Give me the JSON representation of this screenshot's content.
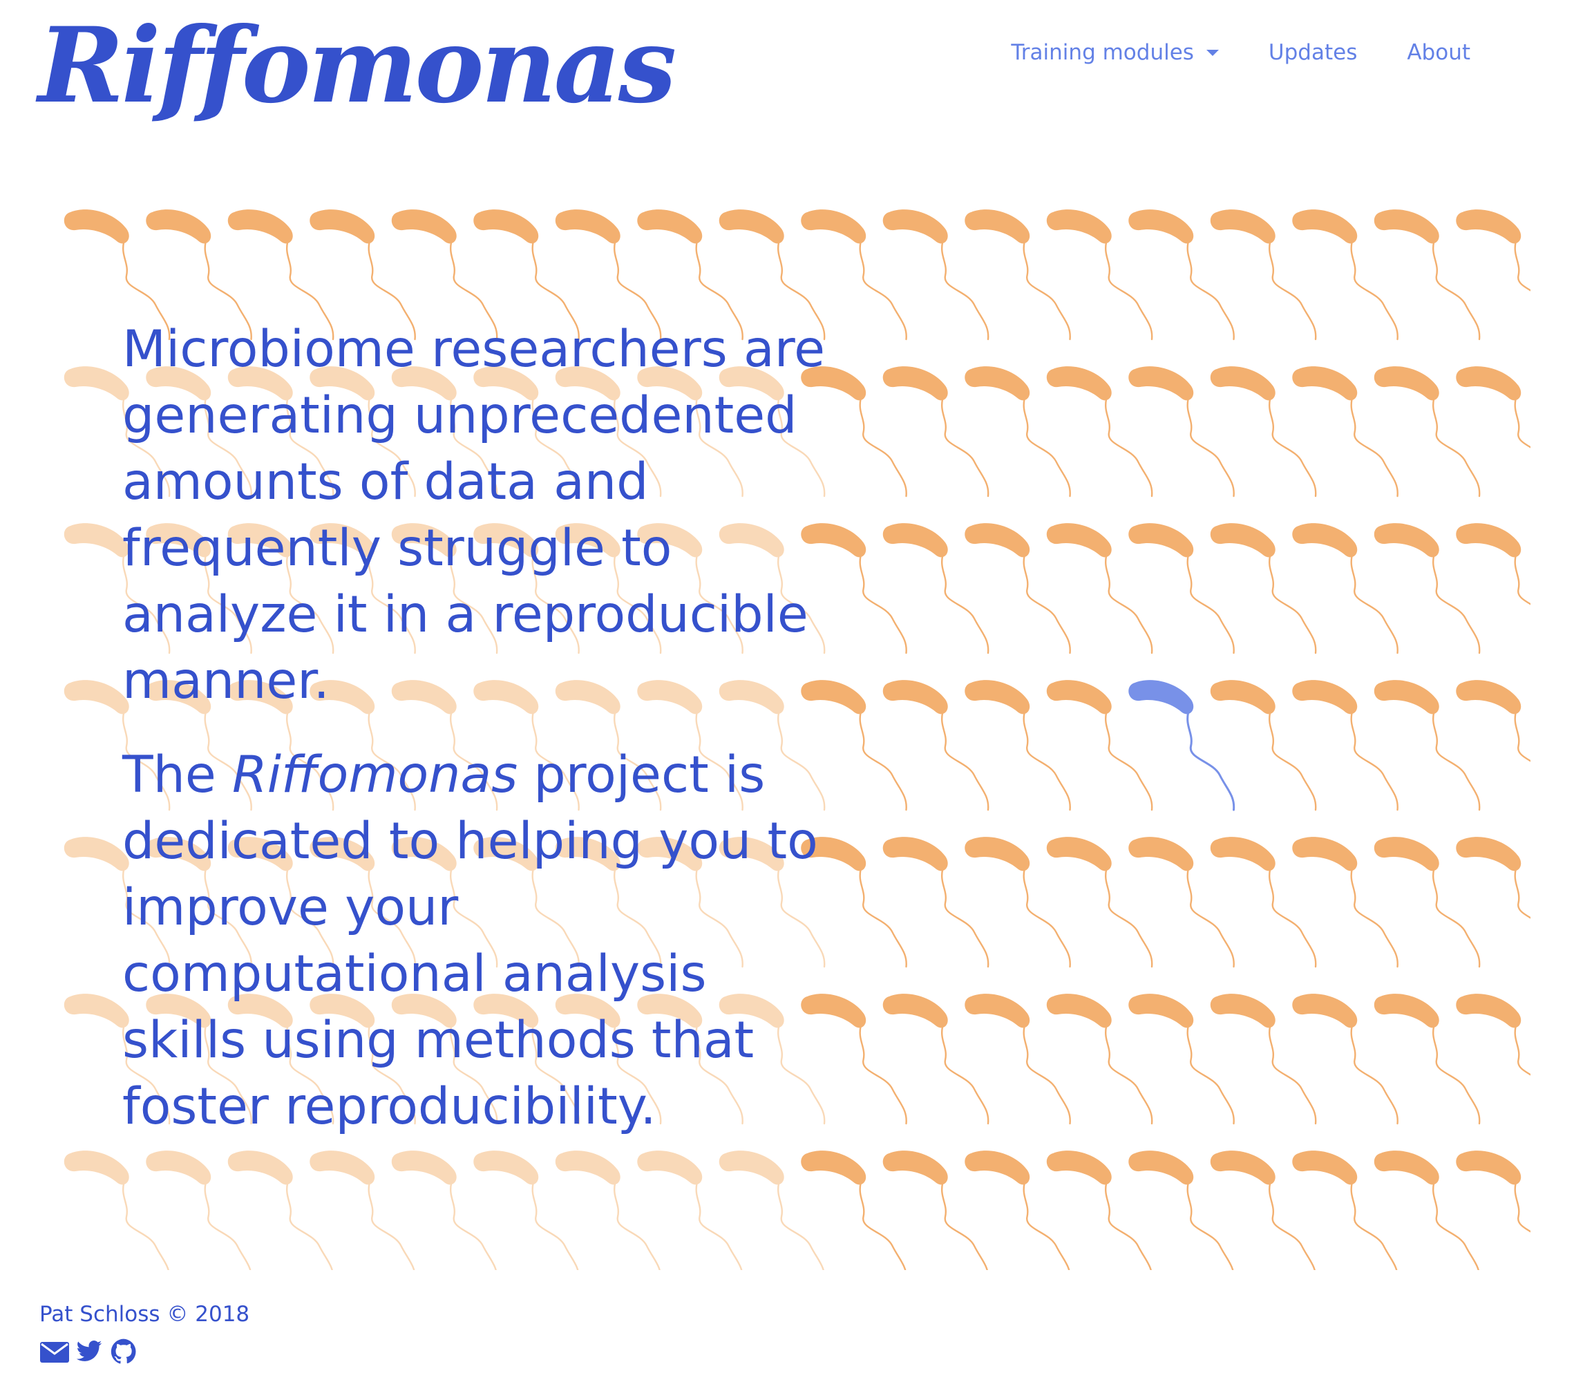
{
  "site": {
    "logo": "Riffomonas"
  },
  "nav": {
    "items": [
      {
        "label": "Training modules",
        "dropdown": true
      },
      {
        "label": "Updates"
      },
      {
        "label": "About"
      }
    ]
  },
  "hero": {
    "paragraph1": "Microbiome researchers are generating unprecedented amounts of data and frequently struggle to analyze it in a reproducible manner.",
    "paragraph2_prefix": "The ",
    "paragraph2_em": "Riffomonas",
    "paragraph2_suffix": " project is dedicated to helping you to improve your computational analysis skills using methods that foster reproducibility."
  },
  "footer": {
    "copyright": "Pat Schloss © 2018",
    "icons": [
      "envelope-icon",
      "twitter-icon",
      "github-icon"
    ]
  },
  "colors": {
    "brand": "#3551cc",
    "nav": "#6381e6",
    "bacteria": "#f3b070",
    "bacteria_faded": "#f9d9b8",
    "highlight": "#7891e8"
  }
}
